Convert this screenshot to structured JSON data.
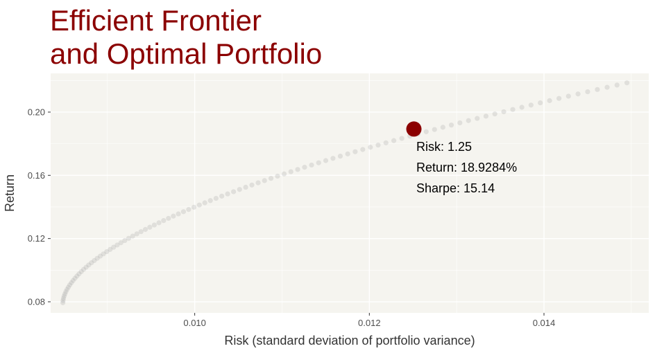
{
  "chart_data": {
    "type": "scatter",
    "title_lines": [
      "Efficient Frontier",
      "and Optimal Portfolio"
    ],
    "xlabel": "Risk (standard deviation of portfolio variance)",
    "ylabel": "Return",
    "xlim": [
      0.00835,
      0.0152
    ],
    "ylim": [
      0.073,
      0.2245
    ],
    "x_ticks": [
      0.01,
      0.012,
      0.014
    ],
    "x_tick_labels": [
      "0.010",
      "0.012",
      "0.014"
    ],
    "y_ticks": [
      0.08,
      0.12,
      0.16,
      0.2
    ],
    "y_tick_labels": [
      "0.08",
      "0.12",
      "0.16",
      "0.20"
    ],
    "grid": true,
    "panel_background": "#f5f4ef",
    "point_color": "#aaaaaa",
    "highlight_color": "#8b0000",
    "frontier": {
      "x_min": 0.00849,
      "x_max": 0.01495,
      "y_min": 0.0794,
      "y_max": 0.2185,
      "n_points": 100
    },
    "optimal": {
      "x": 0.01251,
      "y": 0.189284,
      "annotations": [
        "Risk: 1.25",
        "Return: 18.9284%",
        "Sharpe: 15.14"
      ]
    }
  }
}
